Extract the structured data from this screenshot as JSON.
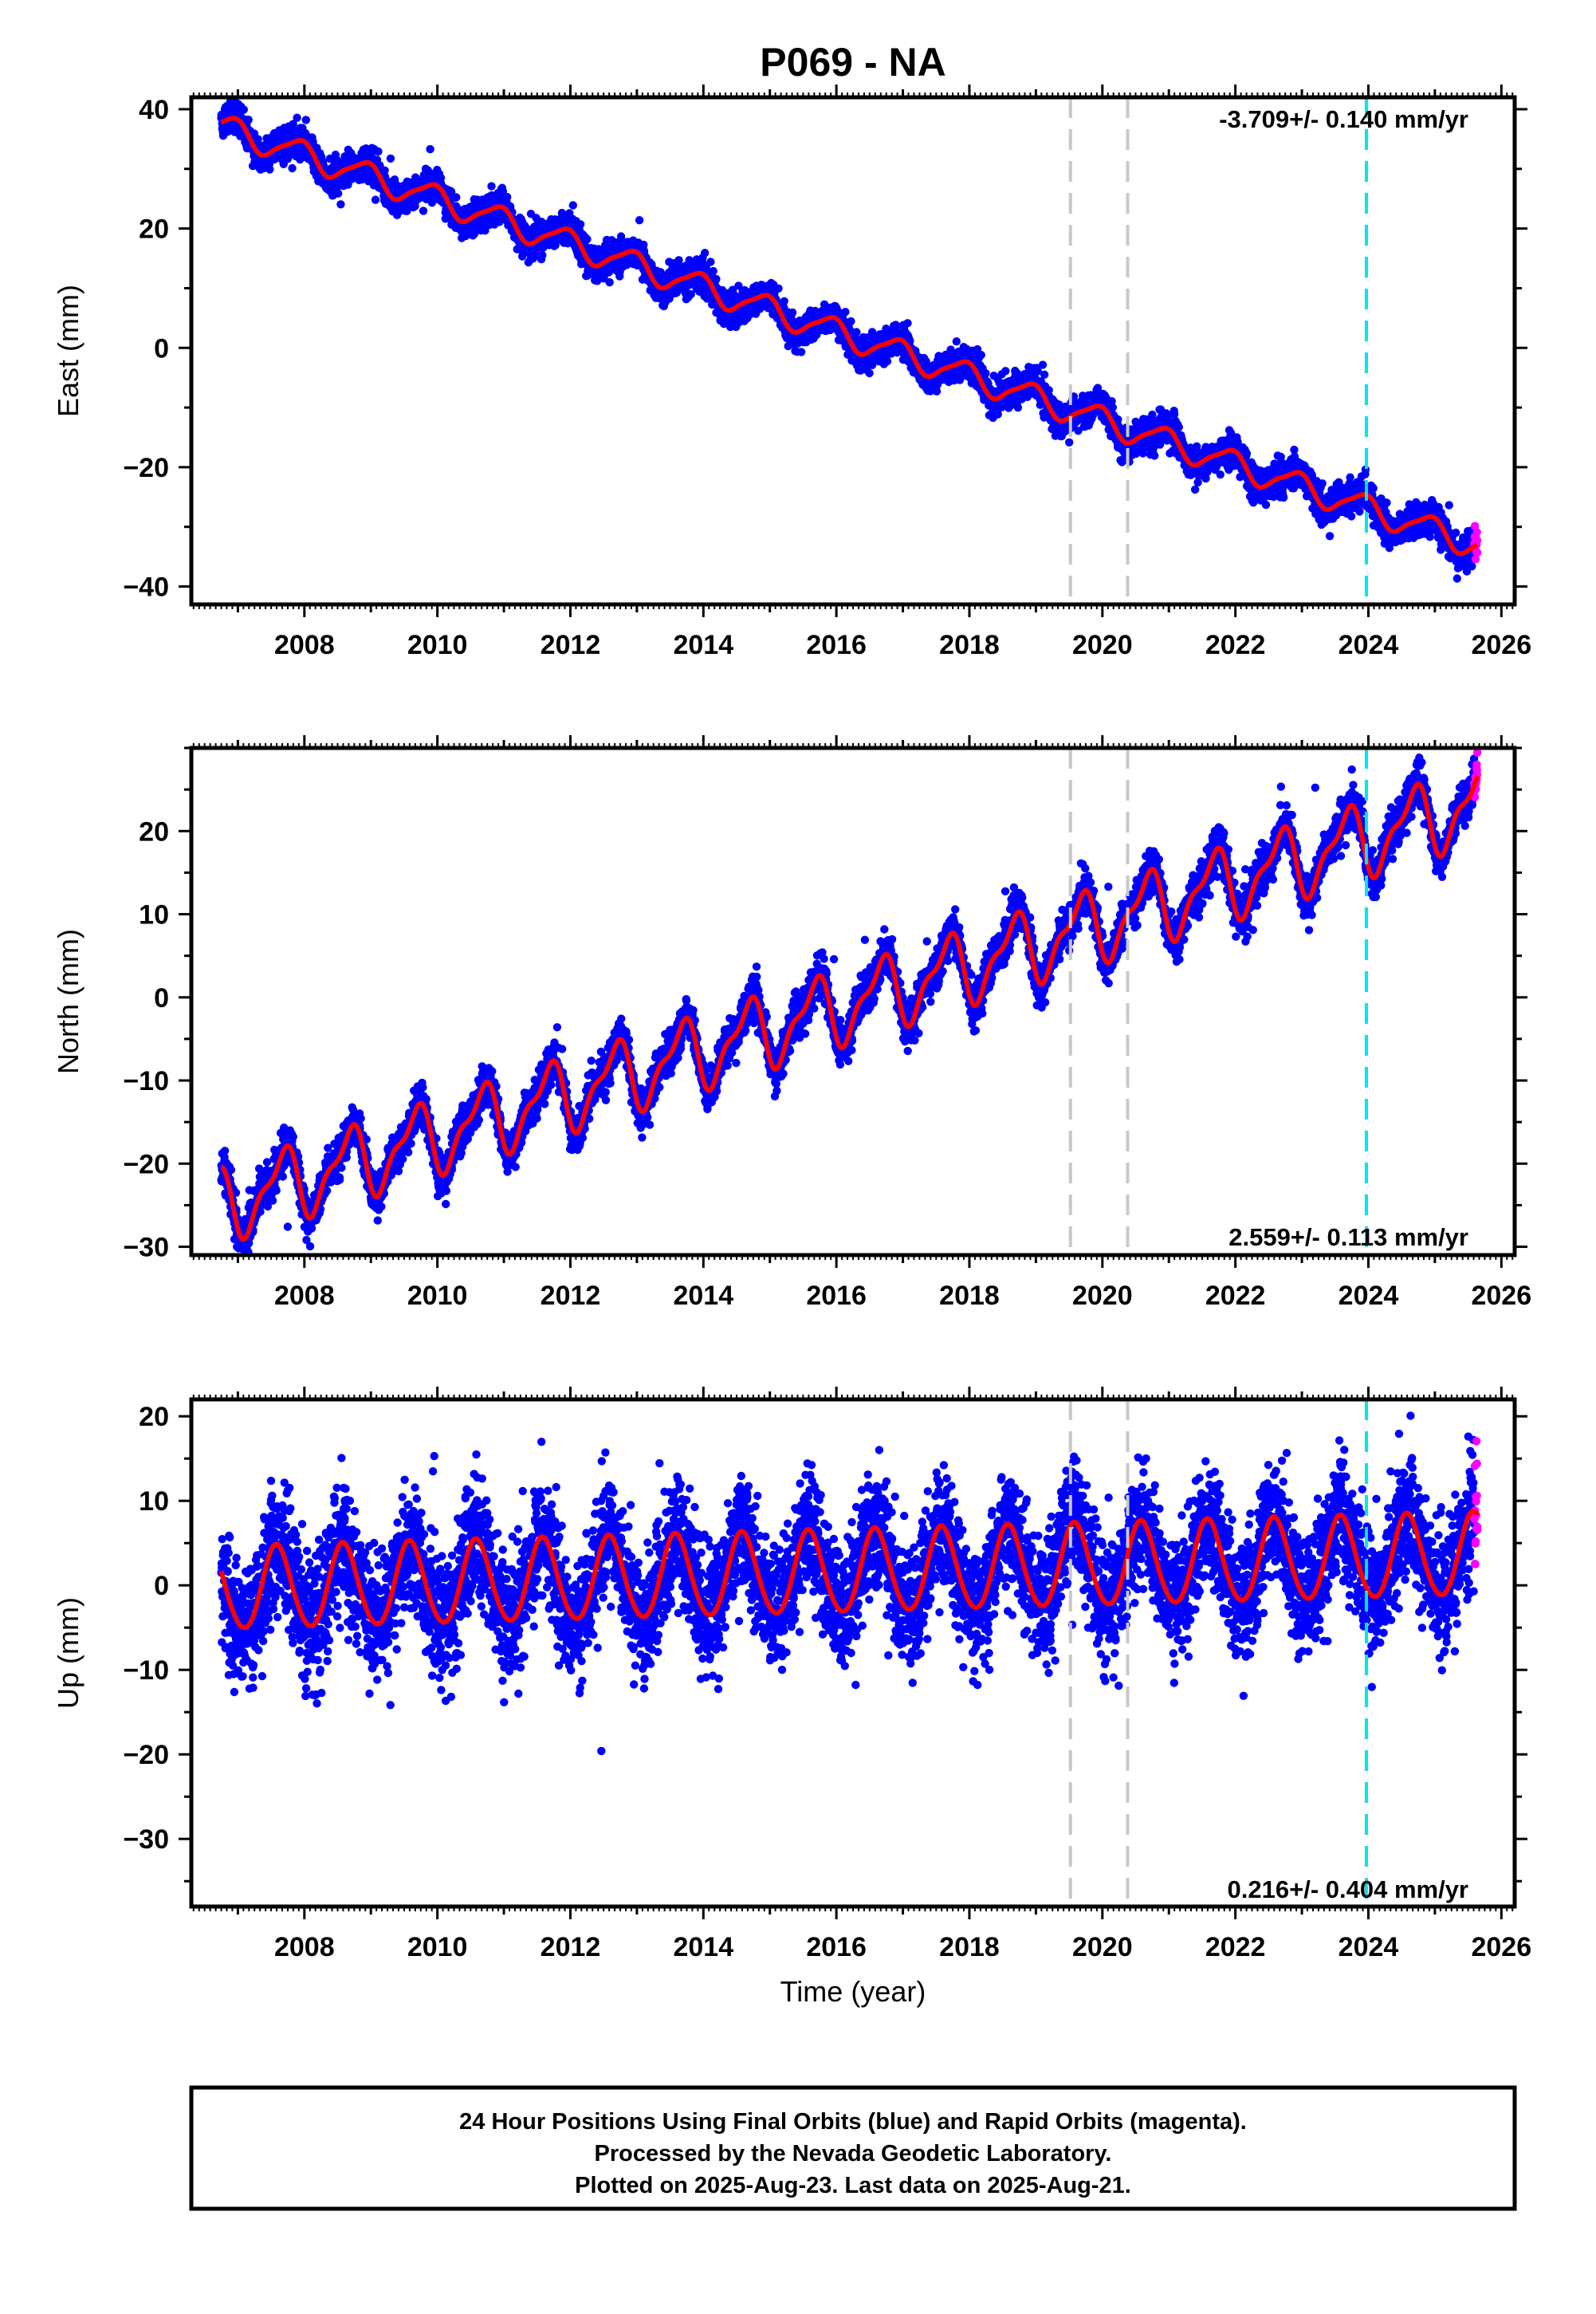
{
  "figure": {
    "title": "P069 - NA",
    "xlabel": "Time (year)",
    "caption_lines": [
      "24 Hour Positions Using Final Orbits (blue) and Rapid Orbits (magenta).",
      "Processed by the Nevada Geodetic Laboratory.",
      "Plotted on 2025-Aug-23. Last data on 2025-Aug-21."
    ]
  },
  "colors": {
    "final_orbits": "#0000ff",
    "rapid_orbits": "#ff00ff",
    "model_fit": "#ff0000",
    "equipment_change": "#c8c8c8",
    "event_marker": "#00e5ee"
  },
  "chart_data": [
    {
      "type": "scatter",
      "panel": "east",
      "ylabel": "East (mm)",
      "xlim": [
        2006.3,
        2026.2
      ],
      "ylim": [
        -43,
        42
      ],
      "xticks": [
        2008,
        2010,
        2012,
        2014,
        2016,
        2018,
        2020,
        2022,
        2024,
        2026
      ],
      "yticks": [
        -40,
        -20,
        0,
        20,
        40
      ],
      "ytick_labels": [
        "−40",
        "−20",
        "0",
        "20",
        "40"
      ],
      "rate_label": "-3.709+/- 0.140 mm/yr",
      "data_start": 2006.75,
      "data_end": 2025.64,
      "rapid_start": 2025.5,
      "model": {
        "offset": 37,
        "rate": -3.709,
        "ann_cos": 1.8,
        "ann_sin": -1.2,
        "semi_cos": 0.4,
        "semi_sin": 0.3
      },
      "noise": 1.3,
      "vlines_gray": [
        2019.52,
        2020.38
      ],
      "vline_cyan": 2023.97,
      "grid": false,
      "legend": "none"
    },
    {
      "type": "scatter",
      "panel": "north",
      "ylabel": "North (mm)",
      "xlim": [
        2006.3,
        2026.2
      ],
      "ylim": [
        -31,
        30
      ],
      "xticks": [
        2008,
        2010,
        2012,
        2014,
        2016,
        2018,
        2020,
        2022,
        2024,
        2026
      ],
      "yticks": [
        -30,
        -20,
        -10,
        0,
        10,
        20
      ],
      "ytick_labels": [
        "−30",
        "−20",
        "−10",
        "0",
        "10",
        "20"
      ],
      "rate_label": "2.559+/- 0.113 mm/yr",
      "data_start": 2006.75,
      "data_end": 2025.64,
      "rapid_start": 2025.5,
      "model": {
        "offset": -25,
        "rate": 2.559,
        "ann_cos": -2.2,
        "ann_sin": -3.3,
        "semi_cos": -1.3,
        "semi_sin": -0.9
      },
      "noise": 1.2,
      "vlines_gray": [
        2019.52,
        2020.38
      ],
      "vline_cyan": 2023.97,
      "grid": false,
      "legend": "none"
    },
    {
      "type": "scatter",
      "panel": "up",
      "ylabel": "Up (mm)",
      "xlim": [
        2006.3,
        2026.2
      ],
      "ylim": [
        -38,
        22
      ],
      "xticks": [
        2008,
        2010,
        2012,
        2014,
        2016,
        2018,
        2020,
        2022,
        2024,
        2026
      ],
      "yticks": [
        -30,
        -20,
        -10,
        0,
        10,
        20
      ],
      "ytick_labels": [
        "−30",
        "−20",
        "−10",
        "0",
        "10",
        "20"
      ],
      "rate_label": "0.216+/- 0.404 mm/yr",
      "data_start": 2006.75,
      "data_end": 2025.64,
      "rapid_start": 2025.5,
      "model": {
        "offset": -0.5,
        "rate": 0.216,
        "ann_cos": -4.2,
        "ann_sin": -2.5,
        "semi_cos": 0.3,
        "semi_sin": 0.2
      },
      "noise": 3.5,
      "vlines_gray": [
        2019.52,
        2020.38
      ],
      "vline_cyan": 2023.97,
      "grid": false,
      "legend": "none"
    }
  ]
}
